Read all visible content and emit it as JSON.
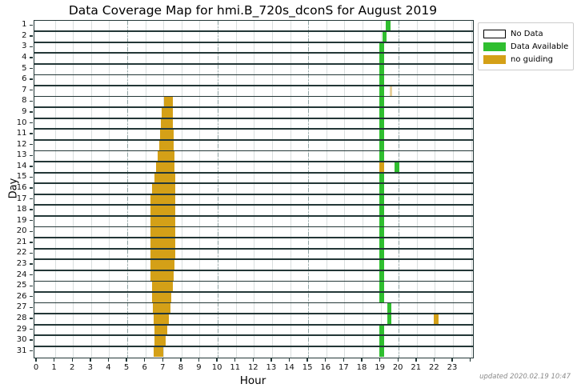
{
  "title": "Data Coverage Map for hmi.B_720s_dconS for August 2019",
  "xlabel": "Hour",
  "ylabel": "Day",
  "footer": "updated 2020.02.19 10:47",
  "legend": {
    "items": [
      {
        "label": "No Data",
        "color": "#ffffff",
        "border": "#000000"
      },
      {
        "label": "Data Available",
        "color": "#2fbe2f",
        "border": "#2fbe2f"
      },
      {
        "label": "no guiding",
        "color": "#d4a017",
        "border": "#d4a017"
      }
    ]
  },
  "colors": {
    "data_available": "#2fbe2f",
    "no_guiding": "#d4a017",
    "no_guiding_faint": "#e8d09c",
    "row_edge": "#233737",
    "grid_hour": "#dadfdf",
    "grid_5hour": "#8fa3a3",
    "no_data_fill": "#ffffff"
  },
  "chart_data": {
    "type": "heatmap",
    "subtype": "day-by-hour coverage map (broken horizontal bars per day)",
    "title": "Data Coverage Map for hmi.B_720s_dconS for August 2019",
    "xlabel": "Hour",
    "ylabel": "Day",
    "x_ticks": [
      0,
      1,
      2,
      3,
      4,
      5,
      6,
      7,
      8,
      9,
      10,
      11,
      12,
      13,
      14,
      15,
      16,
      17,
      18,
      19,
      20,
      21,
      22,
      23
    ],
    "y_ticks": [
      1,
      2,
      3,
      4,
      5,
      6,
      7,
      8,
      9,
      10,
      11,
      12,
      13,
      14,
      15,
      16,
      17,
      18,
      19,
      20,
      21,
      22,
      23,
      24,
      25,
      26,
      27,
      28,
      29,
      30,
      31
    ],
    "xlim": [
      -0.15,
      24.1
    ],
    "days": 31,
    "hours_per_day": 24,
    "grid": {
      "hour_lines": "solid light gray every hour",
      "dash_dot_lines_at_hours": [
        5,
        10,
        15,
        20
      ]
    },
    "legend_position": "upper right, outside plot",
    "background_status": "no_data",
    "segments": [
      {
        "day": 1,
        "start": 19.3,
        "end": 19.55,
        "status": "data_available"
      },
      {
        "day": 2,
        "start": 19.1,
        "end": 19.35,
        "status": "data_available"
      },
      {
        "day": 3,
        "start": 18.95,
        "end": 19.2,
        "status": "data_available"
      },
      {
        "day": 4,
        "start": 18.95,
        "end": 19.2,
        "status": "data_available"
      },
      {
        "day": 5,
        "start": 18.95,
        "end": 19.2,
        "status": "data_available"
      },
      {
        "day": 6,
        "start": 18.95,
        "end": 19.2,
        "status": "data_available"
      },
      {
        "day": 7,
        "start": 18.95,
        "end": 19.2,
        "status": "data_available"
      },
      {
        "day": 7,
        "start": 19.5,
        "end": 19.62,
        "status": "no_guiding_faint"
      },
      {
        "day": 8,
        "start": 7.05,
        "end": 7.5,
        "status": "no_guiding"
      },
      {
        "day": 8,
        "start": 18.95,
        "end": 19.2,
        "status": "data_available"
      },
      {
        "day": 9,
        "start": 6.9,
        "end": 7.5,
        "status": "no_guiding"
      },
      {
        "day": 9,
        "start": 18.95,
        "end": 19.2,
        "status": "data_available"
      },
      {
        "day": 10,
        "start": 6.85,
        "end": 7.5,
        "status": "no_guiding"
      },
      {
        "day": 10,
        "start": 18.95,
        "end": 19.2,
        "status": "data_available"
      },
      {
        "day": 11,
        "start": 6.8,
        "end": 7.55,
        "status": "no_guiding"
      },
      {
        "day": 11,
        "start": 18.95,
        "end": 19.2,
        "status": "data_available"
      },
      {
        "day": 12,
        "start": 6.75,
        "end": 7.55,
        "status": "no_guiding"
      },
      {
        "day": 12,
        "start": 18.95,
        "end": 19.2,
        "status": "data_available"
      },
      {
        "day": 13,
        "start": 6.7,
        "end": 7.6,
        "status": "no_guiding"
      },
      {
        "day": 13,
        "start": 18.95,
        "end": 19.2,
        "status": "data_available"
      },
      {
        "day": 14,
        "start": 6.6,
        "end": 7.6,
        "status": "no_guiding"
      },
      {
        "day": 14,
        "start": 18.95,
        "end": 19.2,
        "status": "no_guiding"
      },
      {
        "day": 14,
        "start": 19.75,
        "end": 20.05,
        "status": "data_available"
      },
      {
        "day": 15,
        "start": 6.5,
        "end": 7.65,
        "status": "no_guiding"
      },
      {
        "day": 15,
        "start": 18.95,
        "end": 19.2,
        "status": "data_available"
      },
      {
        "day": 16,
        "start": 6.35,
        "end": 7.65,
        "status": "no_guiding"
      },
      {
        "day": 16,
        "start": 18.95,
        "end": 19.2,
        "status": "data_available"
      },
      {
        "day": 17,
        "start": 6.3,
        "end": 7.65,
        "status": "no_guiding"
      },
      {
        "day": 17,
        "start": 18.95,
        "end": 19.2,
        "status": "data_available"
      },
      {
        "day": 18,
        "start": 6.3,
        "end": 7.65,
        "status": "no_guiding"
      },
      {
        "day": 18,
        "start": 18.95,
        "end": 19.2,
        "status": "data_available"
      },
      {
        "day": 19,
        "start": 6.3,
        "end": 7.65,
        "status": "no_guiding"
      },
      {
        "day": 19,
        "start": 18.95,
        "end": 19.2,
        "status": "data_available"
      },
      {
        "day": 20,
        "start": 6.3,
        "end": 7.65,
        "status": "no_guiding"
      },
      {
        "day": 20,
        "start": 18.95,
        "end": 19.2,
        "status": "data_available"
      },
      {
        "day": 21,
        "start": 6.3,
        "end": 7.65,
        "status": "no_guiding"
      },
      {
        "day": 21,
        "start": 18.95,
        "end": 19.2,
        "status": "data_available"
      },
      {
        "day": 22,
        "start": 6.3,
        "end": 7.65,
        "status": "no_guiding"
      },
      {
        "day": 22,
        "start": 18.95,
        "end": 19.2,
        "status": "data_available"
      },
      {
        "day": 23,
        "start": 6.3,
        "end": 7.6,
        "status": "no_guiding"
      },
      {
        "day": 23,
        "start": 18.95,
        "end": 19.2,
        "status": "data_available"
      },
      {
        "day": 24,
        "start": 6.3,
        "end": 7.55,
        "status": "no_guiding"
      },
      {
        "day": 24,
        "start": 18.95,
        "end": 19.2,
        "status": "data_available"
      },
      {
        "day": 25,
        "start": 6.35,
        "end": 7.5,
        "status": "no_guiding"
      },
      {
        "day": 25,
        "start": 18.95,
        "end": 19.2,
        "status": "data_available"
      },
      {
        "day": 26,
        "start": 6.35,
        "end": 7.45,
        "status": "no_guiding"
      },
      {
        "day": 26,
        "start": 18.95,
        "end": 19.2,
        "status": "data_available"
      },
      {
        "day": 27,
        "start": 6.4,
        "end": 7.4,
        "status": "no_guiding"
      },
      {
        "day": 27,
        "start": 19.35,
        "end": 19.6,
        "status": "data_available"
      },
      {
        "day": 28,
        "start": 6.45,
        "end": 7.3,
        "status": "no_guiding"
      },
      {
        "day": 28,
        "start": 19.35,
        "end": 19.6,
        "status": "data_available"
      },
      {
        "day": 28,
        "start": 21.95,
        "end": 22.2,
        "status": "no_guiding"
      },
      {
        "day": 29,
        "start": 6.5,
        "end": 7.2,
        "status": "no_guiding"
      },
      {
        "day": 29,
        "start": 18.95,
        "end": 19.2,
        "status": "data_available"
      },
      {
        "day": 30,
        "start": 6.5,
        "end": 7.1,
        "status": "no_guiding"
      },
      {
        "day": 30,
        "start": 18.95,
        "end": 19.2,
        "status": "data_available"
      },
      {
        "day": 31,
        "start": 6.45,
        "end": 7.0,
        "status": "no_guiding"
      },
      {
        "day": 31,
        "start": 18.95,
        "end": 19.2,
        "status": "data_available"
      }
    ]
  }
}
